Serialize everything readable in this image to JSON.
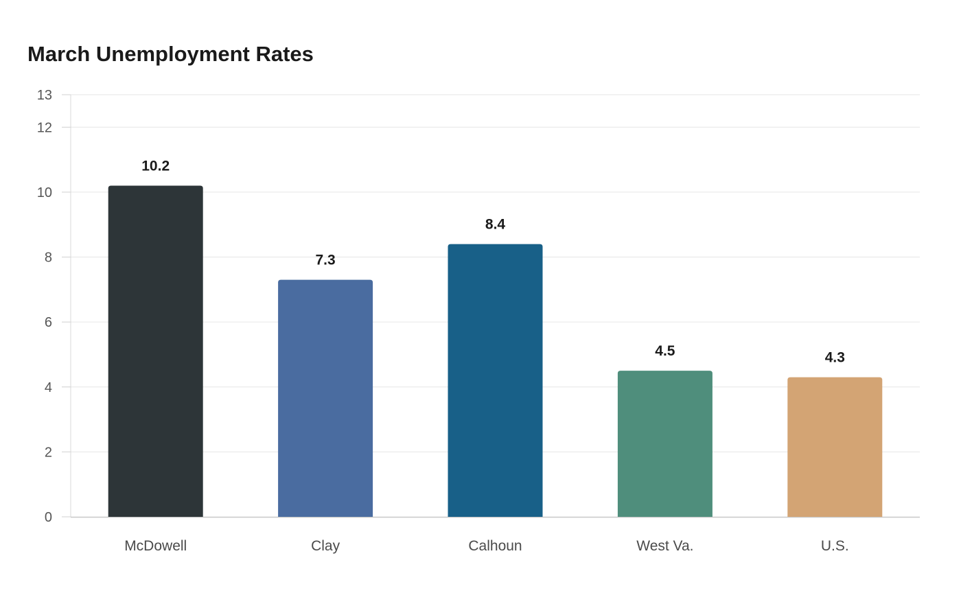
{
  "chart_data": {
    "type": "bar",
    "title": "March Unemployment Rates",
    "xlabel": "",
    "ylabel": "",
    "categories": [
      "McDowell",
      "Clay",
      "Calhoun",
      "West Va.",
      "U.S."
    ],
    "values": [
      10.2,
      7.3,
      8.4,
      4.5,
      4.3
    ],
    "value_labels": [
      "10.2",
      "7.3",
      "8.4",
      "4.5",
      "4.3"
    ],
    "colors": [
      "#2d3538",
      "#4a6ca0",
      "#186088",
      "#4f8e7c",
      "#d3a474"
    ],
    "ylim": [
      0,
      13
    ],
    "yticks": [
      0,
      2,
      4,
      6,
      8,
      10,
      12,
      13
    ],
    "grid": true,
    "legend": "none"
  }
}
